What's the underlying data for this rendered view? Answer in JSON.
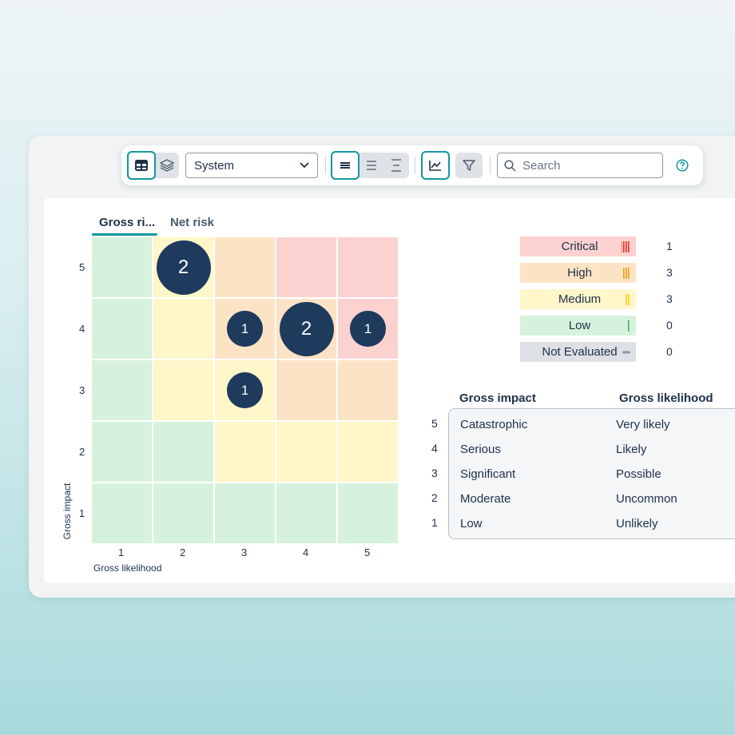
{
  "toolbar": {
    "dropdown_value": "System",
    "search_placeholder": "Search"
  },
  "tabs": [
    {
      "label": "Gross ri..."
    },
    {
      "label": "Net risk"
    }
  ],
  "matrix": {
    "y_ticks": [
      "5",
      "4",
      "3",
      "2",
      "1"
    ],
    "x_ticks": [
      "1",
      "2",
      "3",
      "4",
      "5"
    ],
    "x_label": "Gross likelihood",
    "y_label": "Gross impact",
    "bubbles": [
      {
        "likelihood": 2,
        "impact": 5,
        "count": "2"
      },
      {
        "likelihood": 3,
        "impact": 4,
        "count": "1"
      },
      {
        "likelihood": 4,
        "impact": 4,
        "count": "2"
      },
      {
        "likelihood": 5,
        "impact": 4,
        "count": "1"
      },
      {
        "likelihood": 3,
        "impact": 3,
        "count": "1"
      }
    ],
    "colors": {
      "green": "#d6f2dc",
      "yellow": "#fff6c9",
      "orange": "#fde3c5",
      "red": "#fcd2d0"
    }
  },
  "legend": [
    {
      "label": "Critical",
      "count": "1",
      "bg": "#fcd2d0",
      "mark": "#e5332a"
    },
    {
      "label": "High",
      "count": "3",
      "bg": "#fde3c5",
      "mark": "#f29b16"
    },
    {
      "label": "Medium",
      "count": "3",
      "bg": "#fff6c9",
      "mark": "#f4cd1a"
    },
    {
      "label": "Low",
      "count": "0",
      "bg": "#d6f2dc",
      "mark": "#3cb45a"
    },
    {
      "label": "Not Evaluated",
      "count": "0",
      "bg": "#dde1e6",
      "mark": "#8d97a3"
    }
  ],
  "scale": {
    "impact_header": "Gross impact",
    "likelihood_header": "Gross likelihood",
    "rows": [
      {
        "num": "5",
        "impact": "Catastrophic",
        "likelihood": "Very likely"
      },
      {
        "num": "4",
        "impact": "Serious",
        "likelihood": "Likely"
      },
      {
        "num": "3",
        "impact": "Significant",
        "likelihood": "Possible"
      },
      {
        "num": "2",
        "impact": "Moderate",
        "likelihood": "Uncommon"
      },
      {
        "num": "1",
        "impact": "Low",
        "likelihood": "Unlikely"
      }
    ]
  }
}
